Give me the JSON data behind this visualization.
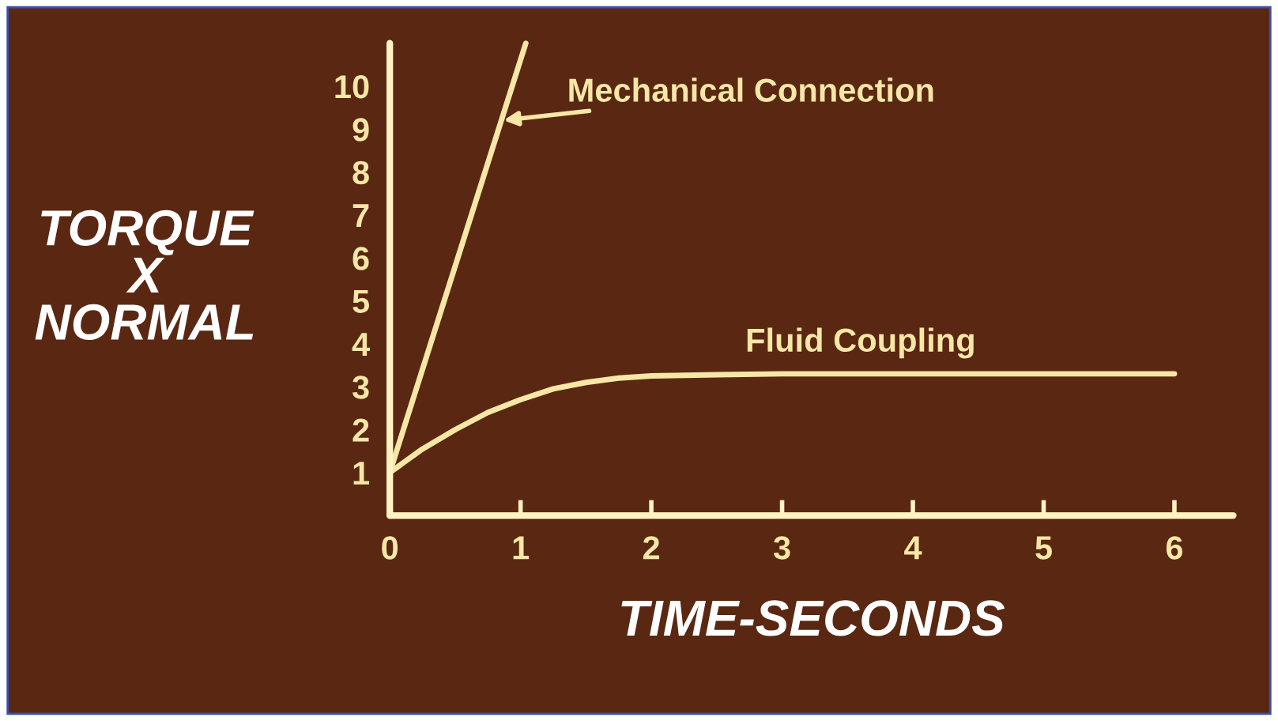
{
  "chart_data": {
    "type": "line",
    "xlabel": "TIME-SECONDS",
    "ylabel": "TORQUE\nX\nNORMAL",
    "xlim": [
      0,
      6.45
    ],
    "ylim": [
      0,
      11
    ],
    "xticks": [
      0,
      1,
      2,
      3,
      4,
      5,
      6
    ],
    "yticks": [
      1,
      2,
      3,
      4,
      5,
      6,
      7,
      8,
      9,
      10
    ],
    "grid": false,
    "legend": false,
    "marker": "none",
    "line_style": "solid",
    "series": [
      {
        "name": "Mechanical Connection",
        "color": "#f6e7a6",
        "x": [
          0,
          1.04
        ],
        "values": [
          1.0,
          11.0
        ]
      },
      {
        "name": "Fluid Coupling",
        "color": "#f6e7a6",
        "x": [
          0,
          0.25,
          0.5,
          0.75,
          1,
          1.25,
          1.5,
          1.75,
          2,
          2.5,
          3,
          4,
          5,
          6
        ],
        "values": [
          1.0,
          1.55,
          2.0,
          2.4,
          2.7,
          2.95,
          3.1,
          3.2,
          3.25,
          3.28,
          3.3,
          3.3,
          3.3,
          3.3
        ]
      }
    ]
  }
}
